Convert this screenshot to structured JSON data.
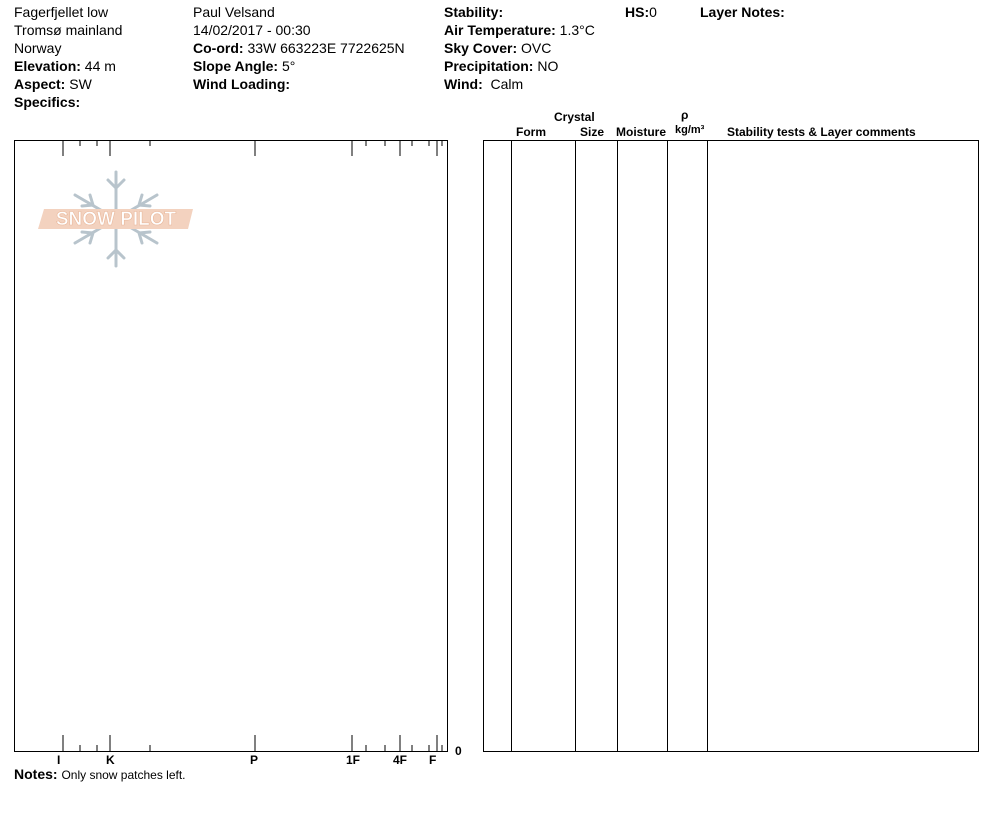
{
  "header": {
    "col1": {
      "location": "Fagerfjellet low",
      "region": "Tromsø mainland",
      "country": "Norway",
      "elevation_label": "Elevation:",
      "elevation": "44 m",
      "aspect_label": "Aspect:",
      "aspect": "SW",
      "specifics_label": "Specifics:"
    },
    "col2": {
      "observer": "Paul Velsand",
      "datetime": "14/02/2017 - 00:30",
      "coord_label": "Co-ord:",
      "coord": "33W 663223E 7722625N",
      "slope_label": "Slope Angle:",
      "slope": "5°",
      "wind_loading_label": "Wind Loading:"
    },
    "col3": {
      "stability_label": "Stability:",
      "air_temp_label": "Air Temperature:",
      "air_temp": "1.3°C",
      "sky_label": "Sky Cover:",
      "sky": "OVC",
      "precip_label": "Precipitation:",
      "precip": "NO",
      "wind_label": "Wind:",
      "wind": "Calm"
    },
    "hs_label": "HS:",
    "hs": 0,
    "layer_notes_label": "Layer Notes:"
  },
  "logo": "SNOW PILOT",
  "table": {
    "headers": {
      "crystal": "Crystal",
      "form": "Form",
      "size": "Size",
      "moisture": "Moisture",
      "rho": "ρ",
      "density_unit": "kg/m³",
      "comments": "Stability tests & Layer comments"
    }
  },
  "hardness_axis": {
    "labels": [
      "I",
      "K",
      "P",
      "1F",
      "4F",
      "F"
    ],
    "depth_zero": 0
  },
  "notes": {
    "label": "Notes:",
    "text": "Only snow patches left."
  }
}
